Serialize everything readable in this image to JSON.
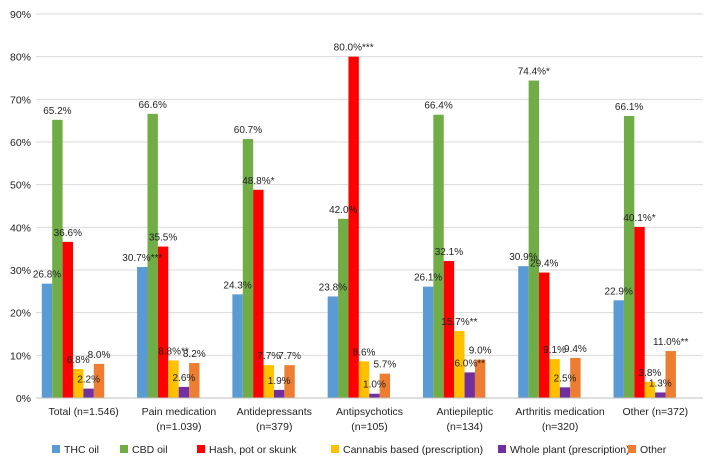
{
  "chart_data": {
    "type": "bar",
    "title": "",
    "xlabel": "",
    "ylabel": "",
    "ylim": [
      0,
      90
    ],
    "yticks": [
      "0%",
      "10%",
      "20%",
      "30%",
      "40%",
      "50%",
      "60%",
      "70%",
      "80%",
      "90%"
    ],
    "grid": true,
    "legend_position": "bottom",
    "categories": [
      [
        "Total (n=1.546)"
      ],
      [
        "Pain medication",
        "(n=1.039)"
      ],
      [
        "Antidepressants",
        "(n=379)"
      ],
      [
        "Antipsychotics",
        "(n=105)"
      ],
      [
        "Antiepileptic",
        "(n=134)"
      ],
      [
        "Arthritis medication",
        "(n=320)"
      ],
      [
        "Other (n=372)"
      ]
    ],
    "series": [
      {
        "name": "THC oil",
        "color": "#5B9BD5",
        "values": [
          26.8,
          30.7,
          24.3,
          23.8,
          26.1,
          30.9,
          22.9
        ],
        "labels": [
          "26.8%",
          "30.7%***",
          "24.3%",
          "23.8%",
          "26.1%",
          "30.9%",
          "22.9%"
        ]
      },
      {
        "name": "CBD oil",
        "color": "#70AD47",
        "values": [
          65.2,
          66.6,
          60.7,
          42.0,
          66.4,
          74.4,
          66.1
        ],
        "labels": [
          "65.2%",
          "66.6%",
          "60.7%",
          "42.0%",
          "66.4%",
          "74.4%*",
          "66.1%"
        ]
      },
      {
        "name": "Hash, pot or skunk",
        "color": "#FF0000",
        "values": [
          36.6,
          35.5,
          48.8,
          80.0,
          32.1,
          29.4,
          40.1
        ],
        "labels": [
          "36.6%",
          "35.5%",
          "48.8%*",
          "80.0%***",
          "32.1%",
          "29.4%",
          "40.1%*"
        ]
      },
      {
        "name": "Cannabis based (prescription)",
        "color": "#FFC000",
        "values": [
          6.8,
          8.8,
          7.7,
          8.6,
          15.7,
          9.1,
          3.8
        ],
        "labels": [
          "6.8%",
          "8.8%**",
          "7.7%",
          "8.6%",
          "15.7%**",
          "9.1%",
          "3.8%"
        ]
      },
      {
        "name": "Whole plant (prescription)",
        "color": "#7030A0",
        "values": [
          2.2,
          2.6,
          1.9,
          1.0,
          6.0,
          2.5,
          1.3
        ],
        "labels": [
          "2.2%",
          "2.6%",
          "1.9%",
          "1.0%",
          "6.0%**",
          "2.5%",
          "1.3%"
        ]
      },
      {
        "name": "Other",
        "color": "#ED7D31",
        "values": [
          8.0,
          8.2,
          7.7,
          5.7,
          9.0,
          9.4,
          11.0
        ],
        "labels": [
          "8.0%",
          "8.2%",
          "7.7%",
          "5.7%",
          "9.0%",
          "9.4%",
          "11.0%**"
        ]
      }
    ]
  }
}
